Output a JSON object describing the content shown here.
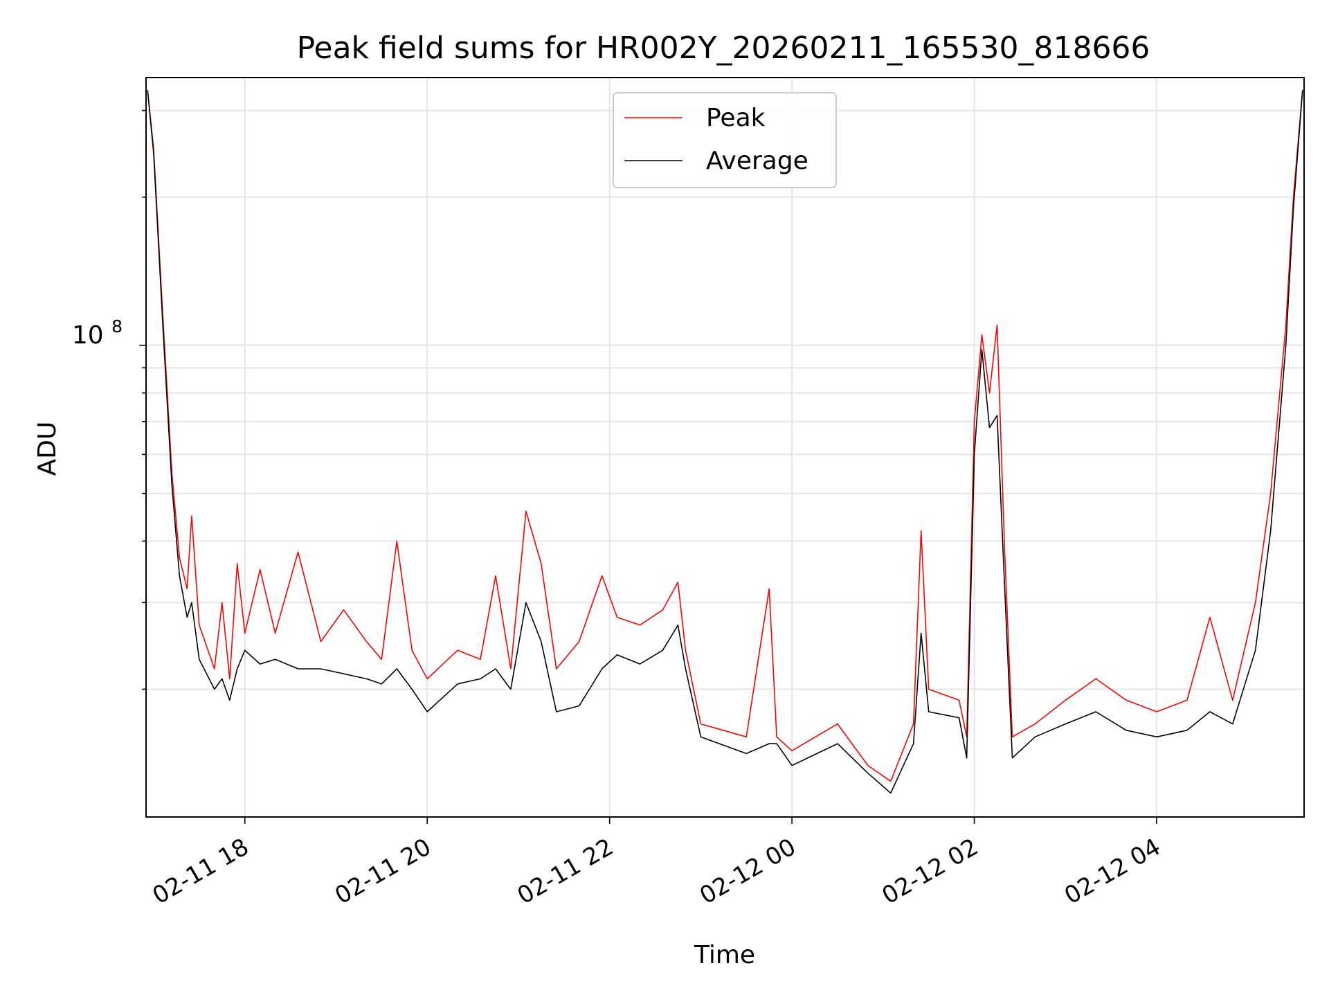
{
  "chart_data": {
    "type": "line",
    "title": "Peak field sums for HR002Y_20260211_165530_818666",
    "xlabel": "Time",
    "ylabel": "ADU",
    "yscale": "log",
    "x_ticks": [
      "02-11 18",
      "02-11 20",
      "02-11 22",
      "02-12 00",
      "02-12 02",
      "02-12 04"
    ],
    "y_major_tick_label": "10",
    "y_major_tick_exponent": "8",
    "grid": true,
    "legend": "upper center",
    "xlim": [
      "2026-02-11 16:55",
      "2026-02-12 05:37"
    ],
    "ylim": [
      11000000,
      350000000
    ],
    "series": [
      {
        "name": "Peak",
        "color": "#ff0000",
        "points": [
          [
            "2026-02-11 16:56",
            330000000
          ],
          [
            "2026-02-11 17:00",
            250000000
          ],
          [
            "2026-02-11 17:06",
            115000000
          ],
          [
            "2026-02-11 17:12",
            55000000
          ],
          [
            "2026-02-11 17:17",
            37000000
          ],
          [
            "2026-02-11 17:22",
            32000000
          ],
          [
            "2026-02-11 17:25",
            45000000
          ],
          [
            "2026-02-11 17:30",
            27000000
          ],
          [
            "2026-02-11 17:40",
            22000000
          ],
          [
            "2026-02-11 17:45",
            30000000
          ],
          [
            "2026-02-11 17:50",
            21000000
          ],
          [
            "2026-02-11 17:55",
            36000000
          ],
          [
            "2026-02-11 18:00",
            26000000
          ],
          [
            "2026-02-11 18:10",
            35000000
          ],
          [
            "2026-02-11 18:20",
            26000000
          ],
          [
            "2026-02-11 18:35",
            38000000
          ],
          [
            "2026-02-11 18:50",
            25000000
          ],
          [
            "2026-02-11 19:05",
            29000000
          ],
          [
            "2026-02-11 19:20",
            25000000
          ],
          [
            "2026-02-11 19:30",
            23000000
          ],
          [
            "2026-02-11 19:40",
            40000000
          ],
          [
            "2026-02-11 19:50",
            24000000
          ],
          [
            "2026-02-11 20:00",
            21000000
          ],
          [
            "2026-02-11 20:20",
            24000000
          ],
          [
            "2026-02-11 20:35",
            23000000
          ],
          [
            "2026-02-11 20:45",
            34000000
          ],
          [
            "2026-02-11 20:55",
            22000000
          ],
          [
            "2026-02-11 21:05",
            46000000
          ],
          [
            "2026-02-11 21:15",
            36000000
          ],
          [
            "2026-02-11 21:25",
            22000000
          ],
          [
            "2026-02-11 21:40",
            25000000
          ],
          [
            "2026-02-11 21:55",
            34000000
          ],
          [
            "2026-02-11 22:05",
            28000000
          ],
          [
            "2026-02-11 22:20",
            27000000
          ],
          [
            "2026-02-11 22:35",
            29000000
          ],
          [
            "2026-02-11 22:45",
            33000000
          ],
          [
            "2026-02-11 22:50",
            24000000
          ],
          [
            "2026-02-11 23:00",
            17000000
          ],
          [
            "2026-02-11 23:30",
            16000000
          ],
          [
            "2026-02-11 23:45",
            32000000
          ],
          [
            "2026-02-11 23:50",
            16000000
          ],
          [
            "2026-02-12 00:00",
            15000000
          ],
          [
            "2026-02-12 00:30",
            17000000
          ],
          [
            "2026-02-12 00:50",
            14000000
          ],
          [
            "2026-02-12 01:05",
            13000000
          ],
          [
            "2026-02-12 01:20",
            17000000
          ],
          [
            "2026-02-12 01:25",
            42000000
          ],
          [
            "2026-02-12 01:30",
            20000000
          ],
          [
            "2026-02-12 01:50",
            19000000
          ],
          [
            "2026-02-12 01:55",
            16000000
          ],
          [
            "2026-02-12 02:00",
            70000000
          ],
          [
            "2026-02-12 02:05",
            105000000
          ],
          [
            "2026-02-12 02:10",
            80000000
          ],
          [
            "2026-02-12 02:15",
            110000000
          ],
          [
            "2026-02-12 02:20",
            38000000
          ],
          [
            "2026-02-12 02:25",
            16000000
          ],
          [
            "2026-02-12 02:40",
            17000000
          ],
          [
            "2026-02-12 03:00",
            19000000
          ],
          [
            "2026-02-12 03:20",
            21000000
          ],
          [
            "2026-02-12 03:40",
            19000000
          ],
          [
            "2026-02-12 04:00",
            18000000
          ],
          [
            "2026-02-12 04:20",
            19000000
          ],
          [
            "2026-02-12 04:35",
            28000000
          ],
          [
            "2026-02-12 04:50",
            19000000
          ],
          [
            "2026-02-12 05:05",
            30000000
          ],
          [
            "2026-02-12 05:15",
            50000000
          ],
          [
            "2026-02-12 05:25",
            110000000
          ],
          [
            "2026-02-12 05:30",
            200000000
          ],
          [
            "2026-02-12 05:36",
            330000000
          ]
        ]
      },
      {
        "name": "Average",
        "color": "#000000",
        "points": [
          [
            "2026-02-11 16:56",
            330000000
          ],
          [
            "2026-02-11 17:00",
            245000000
          ],
          [
            "2026-02-11 17:06",
            110000000
          ],
          [
            "2026-02-11 17:12",
            52000000
          ],
          [
            "2026-02-11 17:17",
            34000000
          ],
          [
            "2026-02-11 17:22",
            28000000
          ],
          [
            "2026-02-11 17:25",
            30000000
          ],
          [
            "2026-02-11 17:30",
            23000000
          ],
          [
            "2026-02-11 17:40",
            20000000
          ],
          [
            "2026-02-11 17:45",
            21000000
          ],
          [
            "2026-02-11 17:50",
            19000000
          ],
          [
            "2026-02-11 17:55",
            22000000
          ],
          [
            "2026-02-11 18:00",
            24000000
          ],
          [
            "2026-02-11 18:10",
            22500000
          ],
          [
            "2026-02-11 18:20",
            23000000
          ],
          [
            "2026-02-11 18:35",
            22000000
          ],
          [
            "2026-02-11 18:50",
            22000000
          ],
          [
            "2026-02-11 19:05",
            21500000
          ],
          [
            "2026-02-11 19:20",
            21000000
          ],
          [
            "2026-02-11 19:30",
            20500000
          ],
          [
            "2026-02-11 19:40",
            22000000
          ],
          [
            "2026-02-11 19:50",
            20000000
          ],
          [
            "2026-02-11 20:00",
            18000000
          ],
          [
            "2026-02-11 20:20",
            20500000
          ],
          [
            "2026-02-11 20:35",
            21000000
          ],
          [
            "2026-02-11 20:45",
            22000000
          ],
          [
            "2026-02-11 20:55",
            20000000
          ],
          [
            "2026-02-11 21:05",
            30000000
          ],
          [
            "2026-02-11 21:15",
            25000000
          ],
          [
            "2026-02-11 21:25",
            18000000
          ],
          [
            "2026-02-11 21:40",
            18500000
          ],
          [
            "2026-02-11 21:55",
            22000000
          ],
          [
            "2026-02-11 22:05",
            23500000
          ],
          [
            "2026-02-11 22:20",
            22500000
          ],
          [
            "2026-02-11 22:35",
            24000000
          ],
          [
            "2026-02-11 22:45",
            27000000
          ],
          [
            "2026-02-11 22:50",
            22000000
          ],
          [
            "2026-02-11 23:00",
            16000000
          ],
          [
            "2026-02-11 23:30",
            14800000
          ],
          [
            "2026-02-11 23:45",
            15500000
          ],
          [
            "2026-02-11 23:50",
            15500000
          ],
          [
            "2026-02-12 00:00",
            14000000
          ],
          [
            "2026-02-12 00:30",
            15500000
          ],
          [
            "2026-02-12 00:50",
            13500000
          ],
          [
            "2026-02-12 01:05",
            12300000
          ],
          [
            "2026-02-12 01:20",
            15500000
          ],
          [
            "2026-02-12 01:25",
            26000000
          ],
          [
            "2026-02-12 01:30",
            18000000
          ],
          [
            "2026-02-12 01:50",
            17500000
          ],
          [
            "2026-02-12 01:55",
            14500000
          ],
          [
            "2026-02-12 02:00",
            60000000
          ],
          [
            "2026-02-12 02:05",
            98000000
          ],
          [
            "2026-02-12 02:10",
            68000000
          ],
          [
            "2026-02-12 02:15",
            72000000
          ],
          [
            "2026-02-12 02:20",
            32000000
          ],
          [
            "2026-02-12 02:25",
            14500000
          ],
          [
            "2026-02-12 02:40",
            16000000
          ],
          [
            "2026-02-12 03:00",
            17000000
          ],
          [
            "2026-02-12 03:20",
            18000000
          ],
          [
            "2026-02-12 03:40",
            16500000
          ],
          [
            "2026-02-12 04:00",
            16000000
          ],
          [
            "2026-02-12 04:20",
            16500000
          ],
          [
            "2026-02-12 04:35",
            18000000
          ],
          [
            "2026-02-12 04:50",
            17000000
          ],
          [
            "2026-02-12 05:05",
            24000000
          ],
          [
            "2026-02-12 05:15",
            42000000
          ],
          [
            "2026-02-12 05:25",
            100000000
          ],
          [
            "2026-02-12 05:30",
            190000000
          ],
          [
            "2026-02-12 05:36",
            330000000
          ]
        ]
      }
    ]
  }
}
